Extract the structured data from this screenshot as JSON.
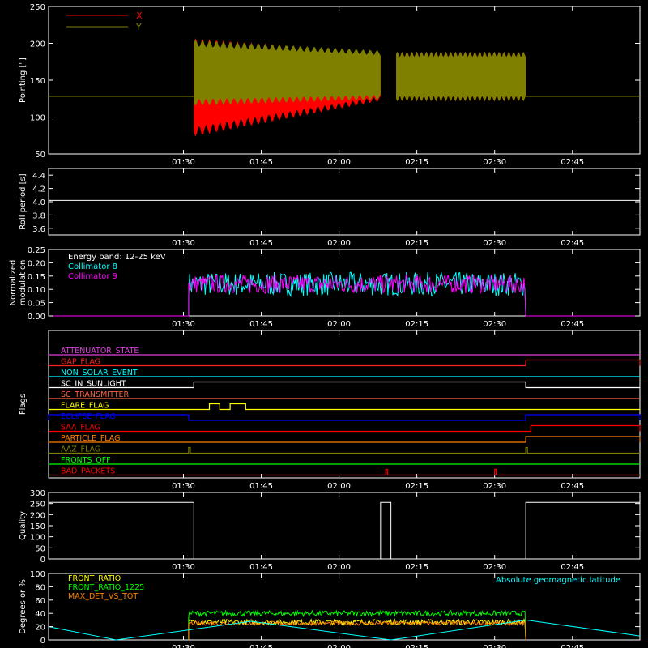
{
  "time_ticks": [
    "01:30",
    "01:45",
    "02:00",
    "02:15",
    "02:30",
    "02:45"
  ],
  "colors": {
    "red": "#ff0000",
    "olive": "#808000",
    "white": "#ffffff",
    "cyan": "#00ffff",
    "magenta": "#ff00ff",
    "yellow": "#ffff00",
    "green": "#00ff00",
    "orange": "#ff8000",
    "blue": "#0000ff",
    "pink": "#e040e0",
    "darkred": "#c00000",
    "tan": "#c08040"
  },
  "chart_data": [
    {
      "id": "pointing",
      "type": "line",
      "ylabel": "Pointing [\"]",
      "ylim": [
        50,
        250
      ],
      "yticks": [
        50,
        100,
        150,
        200,
        250
      ],
      "legend": [
        {
          "name": "X",
          "color": "#ff0000"
        },
        {
          "name": "Y",
          "color": "#808000"
        }
      ],
      "series": [
        {
          "name": "X",
          "color": "#ff0000",
          "segments": [
            {
              "x0": "01:04",
              "x1": "01:32",
              "center": 128,
              "amp": 0
            },
            {
              "x0": "01:32",
              "x1": "02:08",
              "center_start": 140,
              "center_end": 155,
              "amp_start": 60,
              "amp_end": 30
            },
            {
              "x0": "02:11",
              "x1": "02:36",
              "center": 155,
              "amp": 30
            },
            {
              "x0": "02:36",
              "x1": "02:58",
              "center": 128,
              "amp": 0
            }
          ]
        },
        {
          "name": "Y",
          "color": "#808000",
          "segments": [
            {
              "x0": "01:04",
              "x1": "01:32",
              "center": 128,
              "amp": 0
            },
            {
              "x0": "01:32",
              "x1": "02:08",
              "center_start": 160,
              "center_end": 157,
              "amp_start": 40,
              "amp_end": 30
            },
            {
              "x0": "02:11",
              "x1": "02:36",
              "center": 155,
              "amp": 30
            },
            {
              "x0": "02:36",
              "x1": "02:58",
              "center": 128,
              "amp": 0
            }
          ]
        }
      ]
    },
    {
      "id": "roll",
      "type": "line",
      "ylabel": "Roll period [s]",
      "ylim": [
        3.5,
        4.5
      ],
      "yticks": [
        3.6,
        3.8,
        4.0,
        4.2,
        4.4
      ],
      "series": [
        {
          "name": "",
          "color": "#ffffff",
          "value": 4.02
        }
      ]
    },
    {
      "id": "modulation",
      "type": "line",
      "ylabel": "Normalized modulation",
      "ylim": [
        0,
        0.25
      ],
      "yticks": [
        0.0,
        0.05,
        0.1,
        0.15,
        0.2,
        0.25
      ],
      "annotation": "Energy band: 12-25 keV",
      "series": [
        {
          "name": "Collimator 8",
          "color": "#00ffff",
          "active": [
            "01:31",
            "02:36"
          ],
          "mean": 0.12,
          "noise": 0.045
        },
        {
          "name": "Collimator 9",
          "color": "#ff00ff",
          "active": [
            "01:31",
            "02:36"
          ],
          "mean": 0.12,
          "noise": 0.035
        }
      ]
    },
    {
      "id": "flags",
      "type": "line",
      "ylabel": "Flags",
      "rows": [
        {
          "name": "ATTENUATOR_STATE",
          "color": "#e040e0",
          "steps": []
        },
        {
          "name": "GAP_FLAG",
          "color": "#ff2020",
          "steps": [
            [
              "02:36",
              "02:58"
            ]
          ]
        },
        {
          "name": "NON_SOLAR_EVENT",
          "color": "#00ffff",
          "steps": []
        },
        {
          "name": "SC_IN_SUNLIGHT",
          "color": "#ffffff",
          "steps": [
            [
              "01:32",
              "02:36"
            ]
          ]
        },
        {
          "name": "SC_TRANSMITTER",
          "color": "#ff6040",
          "steps": []
        },
        {
          "name": "FLARE_FLAG",
          "color": "#ffff00",
          "steps": [
            [
              "01:35",
              "01:37"
            ],
            [
              "01:39",
              "01:42"
            ]
          ]
        },
        {
          "name": "ECLIPSE_FLAG",
          "color": "#0000ff",
          "steps": [
            [
              "01:04",
              "01:31"
            ],
            [
              "02:36",
              "02:58"
            ]
          ]
        },
        {
          "name": "SAA_FLAG",
          "color": "#ff0000",
          "steps": [
            [
              "02:37",
              "02:58"
            ]
          ]
        },
        {
          "name": "PARTICLE_FLAG",
          "color": "#ff8000",
          "steps": [
            [
              "02:36",
              "02:58"
            ]
          ]
        },
        {
          "name": "AAZ_FLAG",
          "color": "#808000",
          "steps": [
            [
              "01:31",
              "01:31"
            ],
            [
              "02:36",
              "02:36"
            ]
          ]
        },
        {
          "name": "FRONTS_OFF",
          "color": "#00ff00",
          "steps": []
        },
        {
          "name": "BAD_PACKETS",
          "color": "#ff0000",
          "steps": [
            [
              "02:09",
              "02:09"
            ],
            [
              "02:30",
              "02:30"
            ]
          ]
        }
      ]
    },
    {
      "id": "quality",
      "type": "line",
      "ylabel": "Quality",
      "ylim": [
        0,
        300
      ],
      "yticks": [
        0,
        50,
        100,
        150,
        200,
        250,
        300
      ],
      "series": [
        {
          "name": "",
          "color": "#ffffff",
          "points": [
            [
              "01:04",
              255
            ],
            [
              "01:32",
              255
            ],
            [
              "01:32",
              0
            ],
            [
              "02:08",
              0
            ],
            [
              "02:08",
              255
            ],
            [
              "02:10",
              255
            ],
            [
              "02:10",
              0
            ],
            [
              "02:36",
              0
            ],
            [
              "02:36",
              255
            ],
            [
              "02:58",
              255
            ]
          ]
        }
      ]
    },
    {
      "id": "ratios",
      "type": "line",
      "ylabel": "Degrees or %",
      "ylim": [
        0,
        100
      ],
      "yticks": [
        0,
        20,
        40,
        60,
        80,
        100
      ],
      "legend_right": "Absolute geomagnetic latitude",
      "series": [
        {
          "name": "FRONT_RATIO",
          "color": "#ffff00",
          "active": [
            "01:31",
            "02:36"
          ],
          "mean": 27,
          "noise": 4
        },
        {
          "name": "FRONT_RATIO_1225",
          "color": "#00ff00",
          "active": [
            "01:31",
            "02:36"
          ],
          "mean": 40,
          "noise": 4
        },
        {
          "name": "MAX_DET_VS_TOT",
          "color": "#ff8000",
          "active": [
            "01:31",
            "02:36"
          ],
          "mean": 25,
          "noise": 3
        },
        {
          "name": "Absolute geomagnetic latitude",
          "color": "#00ffff",
          "points": [
            [
              "01:04",
              20
            ],
            [
              "01:17",
              0
            ],
            [
              "01:43",
              28
            ],
            [
              "02:08",
              2
            ],
            [
              "02:10",
              0
            ],
            [
              "02:36",
              30
            ],
            [
              "02:58",
              6
            ]
          ]
        }
      ]
    }
  ]
}
